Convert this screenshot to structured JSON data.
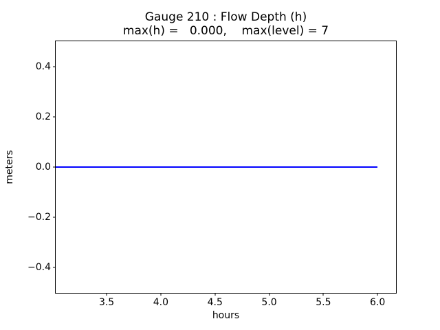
{
  "window": {
    "background": "#ffffff"
  },
  "chart_data": {
    "type": "line",
    "title": "Gauge 210 : Flow Depth (h)",
    "subtitle": "max(h) =   0.000,    max(level) = 7",
    "annotations": {
      "max_h": "0.000",
      "max_level": "7"
    },
    "xlabel": "hours",
    "ylabel": "meters",
    "xlim": [
      3.03,
      6.17
    ],
    "ylim": [
      -0.5,
      0.5
    ],
    "xticks": [
      3.5,
      4.0,
      4.5,
      5.0,
      5.5,
      6.0
    ],
    "xtick_labels": [
      "3.5",
      "4.0",
      "4.5",
      "5.0",
      "5.5",
      "6.0"
    ],
    "yticks": [
      0.4,
      0.2,
      0.0,
      -0.2,
      -0.4
    ],
    "ytick_labels": [
      "0.4",
      "0.2",
      "0.0",
      "−0.2",
      "−0.4"
    ],
    "grid": false,
    "legend_position": "none",
    "series": [
      {
        "name": "flow-depth-h",
        "color": "#0000ff",
        "x": [
          3.03,
          6.0
        ],
        "y": [
          0.0,
          0.0
        ]
      }
    ],
    "colors": {
      "line": "#0000ff",
      "spine": "#000000",
      "text": "#000000"
    }
  }
}
